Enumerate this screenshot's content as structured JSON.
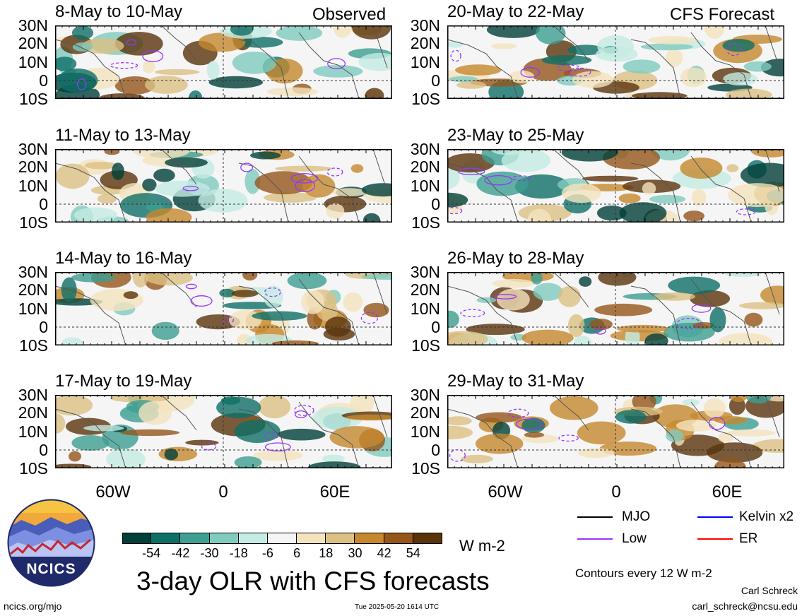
{
  "header": {
    "observed_label": "Observed",
    "forecast_label": "CFS Forecast"
  },
  "panels": [
    {
      "title": "8-May to 10-May",
      "seed": 3
    },
    {
      "title": "11-May to 13-May",
      "seed": 7
    },
    {
      "title": "14-May to 16-May",
      "seed": 11
    },
    {
      "title": "17-May to 19-May",
      "seed": 19
    },
    {
      "title": "20-May to 22-May",
      "seed": 23
    },
    {
      "title": "23-May to 25-May",
      "seed": 29
    },
    {
      "title": "26-May to 28-May",
      "seed": 31
    },
    {
      "title": "29-May to 31-May",
      "seed": 37
    }
  ],
  "axes": {
    "lat_ticks": [
      "30N",
      "20N",
      "10N",
      "0",
      "10S"
    ],
    "lon_ticks": [
      "60W",
      "0",
      "60E"
    ]
  },
  "colorbar": {
    "ticks": [
      "-54",
      "-42",
      "-30",
      "-18",
      "-6",
      "6",
      "18",
      "30",
      "42",
      "54"
    ],
    "colors": [
      "#01403a",
      "#0e6f67",
      "#3d9e92",
      "#7fcbbe",
      "#c4ebe4",
      "#f5f5f5",
      "#f4e4be",
      "#dcc083",
      "#c5882e",
      "#95561a",
      "#5a330b"
    ],
    "units": "W m-2"
  },
  "legend": {
    "mjo": "MJO",
    "kelvin": "Kelvin x2",
    "low": "Low",
    "er": "ER",
    "colors": {
      "mjo": "#000000",
      "kelvin": "#0000ff",
      "low": "#9933ff",
      "er": "#ff0000"
    }
  },
  "footer": {
    "title": "3-day OLR with CFS forecasts",
    "contours": "Contours every 12 W m-2",
    "author": "Carl Schreck",
    "email": "carl_schreck@ncsu.edu",
    "site": "ncics.org/mjo",
    "timestamp": "Tue 2025-05-20 1614 UTC",
    "logo_text": "NCICS"
  },
  "chart_data": {
    "type": "heatmap",
    "variable": "OLR anomaly",
    "units": "W m-2",
    "lat_range": [
      -10,
      30
    ],
    "lon_ticks": [
      "60W",
      "0",
      "60E"
    ],
    "lat_ticks": [
      "30N",
      "20N",
      "10N",
      "0",
      "10S"
    ],
    "color_levels": [
      -54,
      -42,
      -30,
      -18,
      -6,
      6,
      18,
      30,
      42,
      54
    ],
    "panels": [
      "8-May to 10-May",
      "11-May to 13-May",
      "14-May to 16-May",
      "17-May to 19-May",
      "20-May to 22-May",
      "23-May to 25-May",
      "26-May to 28-May",
      "29-May to 31-May"
    ],
    "series": [
      {
        "name": "MJO"
      },
      {
        "name": "Kelvin x2"
      },
      {
        "name": "Low"
      },
      {
        "name": "ER"
      }
    ]
  }
}
